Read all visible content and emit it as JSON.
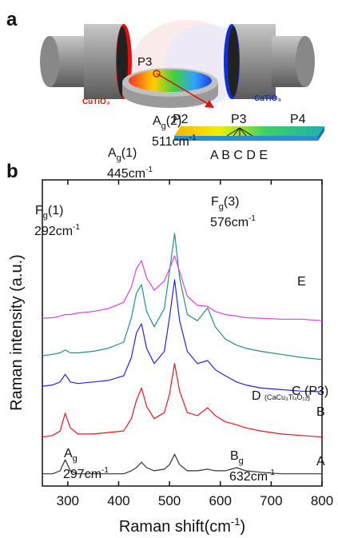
{
  "panel_a": {
    "label": "a",
    "target_left": "CuTiO₃",
    "target_right": "CaTiO₃",
    "disk_point": "P3",
    "strip_points": [
      "P2",
      "P3",
      "P4"
    ],
    "strip_positions": "A B C D E"
  },
  "chart_data": {
    "type": "line",
    "panel_label": "b",
    "x_label": {
      "text": "Raman shift(cm",
      "sup": "-1",
      "tail": ")"
    },
    "y_label": "Raman intensity (a.u.)",
    "xlim": [
      250,
      800
    ],
    "xticks": [
      300,
      400,
      500,
      600,
      700,
      800
    ],
    "ylim": [
      0,
      100
    ],
    "x": [
      250,
      270,
      285,
      295,
      305,
      320,
      350,
      380,
      410,
      425,
      435,
      445,
      455,
      470,
      490,
      500,
      510,
      520,
      535,
      555,
      575,
      590,
      610,
      632,
      650,
      680,
      720,
      760,
      800
    ],
    "series": [
      {
        "name": "A",
        "color": "#333333",
        "values": [
          4,
          4,
          5,
          8.6,
          5,
          4,
          4,
          4,
          4,
          5,
          6,
          7.8,
          6,
          5,
          5.5,
          7,
          10.4,
          7,
          5,
          5,
          5.5,
          5,
          5,
          6,
          5,
          4.5,
          4,
          4,
          4
        ]
      },
      {
        "name": "B",
        "color": "#e8141e",
        "values": [
          16,
          16.5,
          18,
          23.8,
          19,
          17,
          17,
          17.5,
          18,
          22,
          28,
          32,
          26,
          22,
          24,
          30,
          40,
          31,
          24,
          23,
          25.6,
          23,
          21,
          20,
          19,
          18,
          17,
          16.5,
          16
        ]
      },
      {
        "name": "C (P3)",
        "color": "#2424e0",
        "values": [
          32.6,
          33,
          34,
          36.5,
          34,
          33.5,
          34,
          34.5,
          36,
          42,
          50,
          53,
          45,
          40,
          44,
          55,
          67.4,
          54,
          44,
          40,
          41,
          38,
          36,
          34,
          33,
          32,
          31.5,
          31,
          30.8
        ]
      },
      {
        "name": "D",
        "note": "(CaCu₃Ti₄O₁₂)",
        "color": "#20908a",
        "values": [
          42.6,
          43,
          43.5,
          44.4,
          43.5,
          43.5,
          44,
          45,
          47,
          55,
          63,
          65.8,
          57,
          52,
          58,
          70,
          82.5,
          68,
          56,
          54,
          58.2,
          52,
          48,
          46,
          45,
          44,
          43,
          42,
          41.3
        ]
      },
      {
        "name": "E",
        "color": "#e040e0",
        "values": [
          54.8,
          55,
          55.5,
          56,
          56,
          56.5,
          57,
          58,
          60,
          65,
          71,
          73.6,
          68,
          64,
          67,
          71,
          75.2,
          70,
          62,
          59,
          58.7,
          57,
          56,
          55.5,
          55,
          54.8,
          54.5,
          54.5,
          54
        ]
      }
    ],
    "annotations": [
      {
        "base": "F",
        "sub": "g",
        "suffix": "(1)",
        "wavenumber": "292cm",
        "sup": "-1"
      },
      {
        "base": "A",
        "sub": "g",
        "suffix": "(1)",
        "wavenumber": "445cm",
        "sup": "-1"
      },
      {
        "base": "A",
        "sub": "g",
        "suffix": "(2)",
        "wavenumber": "511cm",
        "sup": "-1"
      },
      {
        "base": "F",
        "sub": "g",
        "suffix": "(3)",
        "wavenumber": "576cm",
        "sup": "-1"
      },
      {
        "base": "A",
        "sub": "g",
        "wavenumber": "297cm",
        "sup": "-1"
      },
      {
        "base": "B",
        "sub": "g",
        "wavenumber": "632cm",
        "sup": "-1"
      }
    ]
  }
}
